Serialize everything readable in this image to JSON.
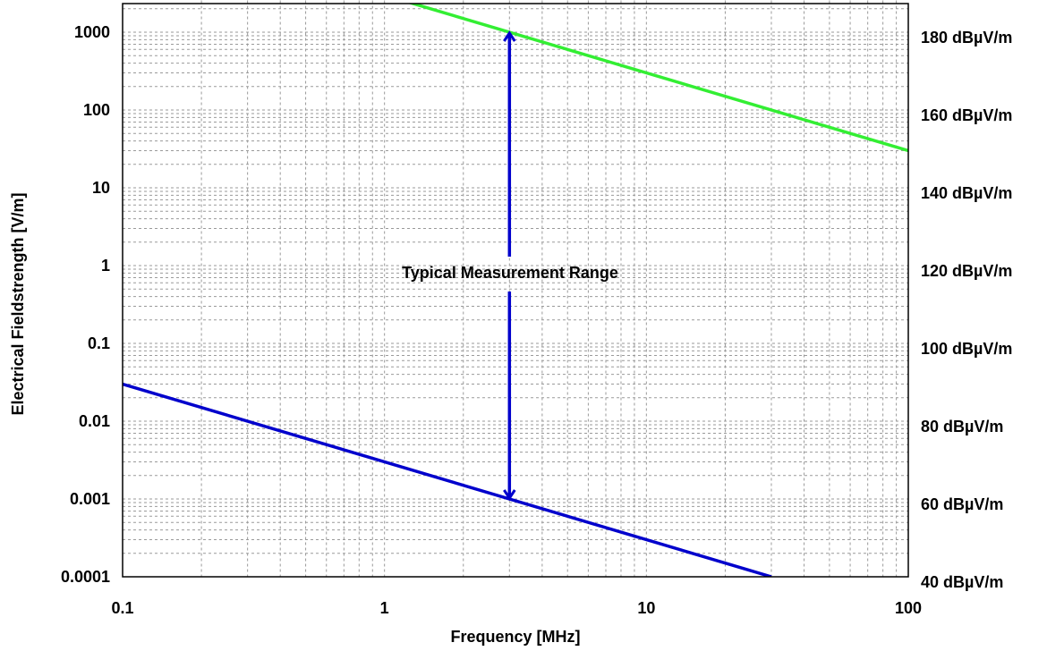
{
  "chart_data": {
    "type": "line",
    "xlabel": "Frequency [MHz]",
    "ylabel": "Electrical Fieldstrength [V/m]",
    "xscale": "log",
    "yscale": "log",
    "xlim": [
      0.1,
      100
    ],
    "ylim": [
      0.0001,
      3000
    ],
    "grid": true,
    "x_ticks": [
      "0.1",
      "1",
      "10",
      "100"
    ],
    "y_ticks": [
      "0.0001",
      "0.001",
      "0.01",
      "0.1",
      "1",
      "10",
      "100",
      "1000"
    ],
    "y2_ticks": [
      "40 dBµV/m",
      "60 dBµV/m",
      "80 dBµV/m",
      "100 dBµV/m",
      "120 dBµV/m",
      "140 dBµV/m",
      "160 dBµV/m",
      "180 dBµV/m"
    ],
    "series": [
      {
        "color": "#33ee33",
        "x": [
          1,
          100
        ],
        "y": [
          3000,
          30
        ]
      },
      {
        "color": "#0000cc",
        "x": [
          0.1,
          30
        ],
        "y": [
          0.03,
          0.0001
        ]
      }
    ],
    "annotation": {
      "text": "Typical Measurement Range",
      "x": 3,
      "y_from": 1000,
      "y_to": 0.001,
      "color": "#0000cc"
    }
  }
}
